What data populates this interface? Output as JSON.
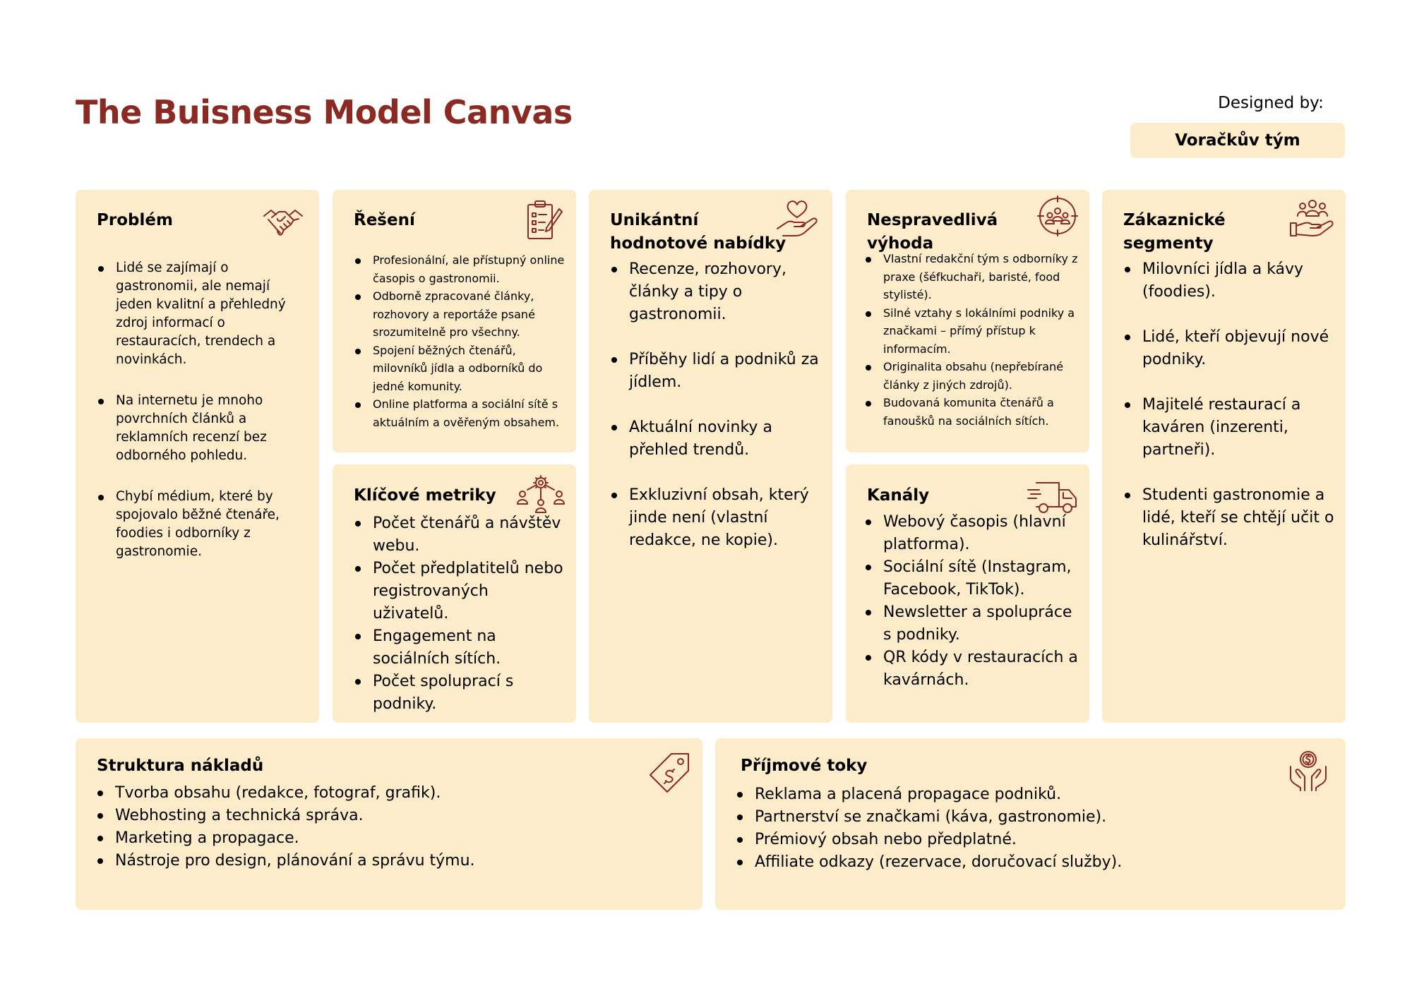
{
  "header": {
    "title": "The Buisness Model Canvas",
    "designed_by_label": "Designed by:",
    "designed_by_value": "Voračkův tým"
  },
  "colors": {
    "accent": "#8a2a22",
    "card_background": "#fdecc9"
  },
  "problem": {
    "title": "Problém",
    "icon": "handshake-icon",
    "items": [
      "Lidé se zajímají o gastronomii, ale nemají jeden kvalitní a přehledný zdroj informací o restauracích, trendech a novinkách.",
      "Na internetu je mnoho povrchních článků a reklamních recenzí bez odborného pohledu.",
      "Chybí médium, které by spojovalo běžné čtenáře, foodies i odborníky z gastronomie."
    ]
  },
  "solution": {
    "title": "Řešení",
    "icon": "clipboard-checklist-icon",
    "items": [
      "Profesionální, ale přístupný online časopis o gastronomii.",
      "Odborně zpracované články, rozhovory a reportáže psané srozumitelně pro všechny.",
      "Spojení běžných čtenářů, milovníků jídla a odborníků do jedné komunity.",
      "Online platforma a sociální sítě s aktuálním a ověřeným obsahem."
    ]
  },
  "value_proposition": {
    "title": "Unikántní hodnotové nabídky",
    "icon": "heart-hand-icon",
    "items": [
      "Recenze, rozhovory, články a tipy o gastronomii.",
      "Příběhy lidí a podniků za jídlem.",
      "Aktuální novinky a přehled trendů.",
      "Exkluzivní obsah, který jinde není (vlastní redakce, ne kopie)."
    ]
  },
  "unfair_advantage": {
    "title": "Nespravedlivá výhoda",
    "icon": "target-group-icon",
    "items": [
      "Vlastní redakční tým s odborníky z praxe (šéfkuchaři, baristé, food stylisté).",
      "Silné vztahy s lokálními podniky a značkami – přímý přístup k informacím.",
      "Originalita obsahu (nepřebírané články z jiných zdrojů).",
      "Budovaná komunita čtenářů a fanoušků na sociálních sítích."
    ]
  },
  "customer_segments": {
    "title": "Zákaznické segmenty",
    "icon": "customers-hand-icon",
    "items": [
      "Milovníci jídla a kávy (foodies).",
      "Lidé, kteří objevují nové podniky.",
      "Majitelé restaurací a kaváren (inzerenti, partneři).",
      "Studenti gastronomie a lidé, kteří se chtějí učit o kulinářství."
    ]
  },
  "key_metrics": {
    "title": "Klíčové metriky",
    "icon": "team-network-icon",
    "items": [
      "Počet čtenářů a návštěv webu.",
      "Počet předplatitelů nebo registrovaných uživatelů.",
      "Engagement na sociálních sítích.",
      "Počet spoluprací s podniky."
    ]
  },
  "channels": {
    "title": "Kanály",
    "icon": "delivery-truck-icon",
    "items": [
      "Webový časopis (hlavní platforma).",
      "Sociální sítě (Instagram, Facebook, TikTok).",
      "Newsletter a spolupráce s podniky.",
      "QR kódy v restauracích a kavárnách."
    ]
  },
  "cost_structure": {
    "title": "Struktura nákladů",
    "icon": "price-tag-icon",
    "items": [
      "Tvorba obsahu (redakce, fotograf, grafik).",
      "Webhosting a technická správa.",
      "Marketing a propagace.",
      "Nástroje pro design, plánování a správu týmu."
    ]
  },
  "revenue_streams": {
    "title": "Příjmové toky",
    "icon": "money-hands-icon",
    "items": [
      "Reklama a placená propagace podniků.",
      "Partnerství se značkami (káva, gastronomie).",
      "Prémiový obsah nebo předplatné.",
      "Affiliate odkazy (rezervace, doručovací služby)."
    ]
  }
}
